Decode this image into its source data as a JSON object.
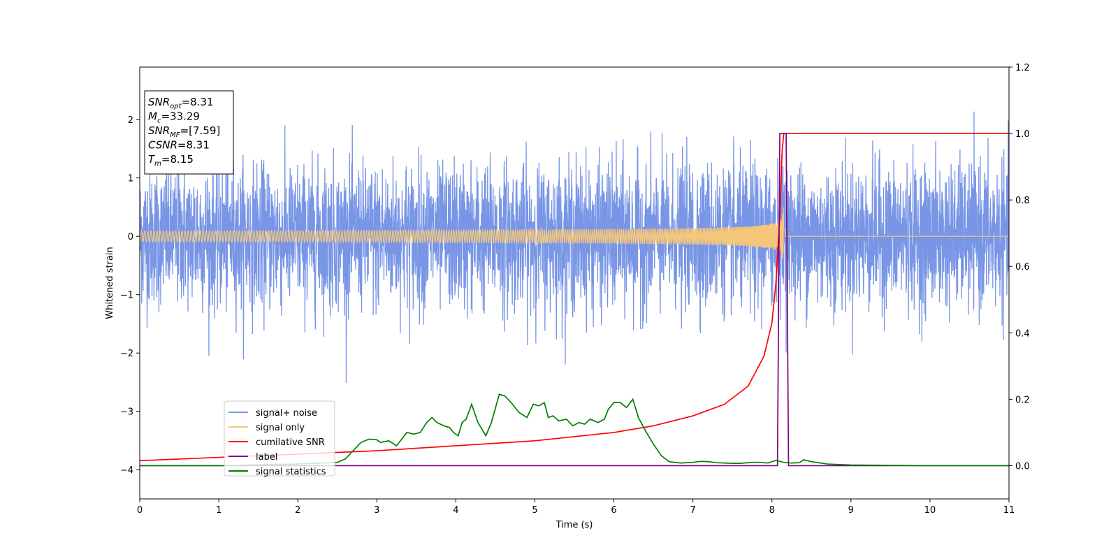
{
  "chart_data": {
    "type": "line",
    "xlabel": "Time (s)",
    "ylabel": "Whitened strain",
    "xlim": [
      0,
      11
    ],
    "ylim": [
      -4.5,
      2.9
    ],
    "y2lim": [
      -0.1,
      1.2
    ],
    "x_ticks": [
      0,
      1,
      2,
      3,
      4,
      5,
      6,
      7,
      8,
      9,
      10,
      11
    ],
    "y_ticks": [
      -4,
      -3,
      -2,
      -1,
      0,
      1,
      2
    ],
    "y2_ticks": [
      0.0,
      0.2,
      0.4,
      0.6,
      0.8,
      1.0,
      1.2
    ],
    "grid": false,
    "legend_position": "lower-left",
    "annotation": {
      "lines": [
        {
          "var": "SNR",
          "sub": "opt",
          "value": "=8.31"
        },
        {
          "var": "M",
          "sub": "c",
          "value": "=33.29"
        },
        {
          "var": "SNR",
          "sub": "MF",
          "value": "=[7.59]"
        },
        {
          "var": "CSNR",
          "sub": "",
          "value": "=8.31"
        },
        {
          "var": "T",
          "sub": "m",
          "value": "=8.15"
        }
      ]
    },
    "series": [
      {
        "name": "signal+ noise",
        "color": "#7895e6",
        "axis": "left",
        "description_values": {
          "noise_std": 0.5,
          "duration": 11
        }
      },
      {
        "name": "signal only",
        "color": "#f5c77a",
        "axis": "left",
        "chirp": {
          "merger_time": 8.15,
          "peak_amplitude": 0.55
        }
      },
      {
        "name": "cumilative SNR",
        "color": "#ff0000",
        "axis": "right",
        "x": [
          0,
          1,
          2,
          3,
          4,
          5,
          6,
          6.5,
          7,
          7.4,
          7.7,
          7.9,
          8.0,
          8.05,
          8.1,
          8.13,
          8.15,
          8.2,
          9,
          10,
          11
        ],
        "y": [
          0.015,
          0.025,
          0.035,
          0.045,
          0.06,
          0.075,
          0.1,
          0.12,
          0.15,
          0.185,
          0.24,
          0.33,
          0.43,
          0.55,
          0.75,
          0.95,
          1.0,
          1.0,
          1.0,
          1.0,
          1.0
        ]
      },
      {
        "name": "label",
        "color": "#800080",
        "axis": "right",
        "x": [
          0,
          8.07,
          8.1,
          8.18,
          8.21,
          11
        ],
        "y": [
          0,
          0,
          1.0,
          1.0,
          0,
          0
        ]
      },
      {
        "name": "signal statistics",
        "color": "#008000",
        "axis": "right",
        "x": [
          0,
          1,
          2,
          2.5,
          2.6,
          2.7,
          2.8,
          2.9,
          3.0,
          3.05,
          3.15,
          3.25,
          3.38,
          3.47,
          3.55,
          3.63,
          3.7,
          3.76,
          3.85,
          3.92,
          3.97,
          4.03,
          4.08,
          4.13,
          4.2,
          4.28,
          4.38,
          4.45,
          4.55,
          4.62,
          4.7,
          4.8,
          4.9,
          4.98,
          5.05,
          5.12,
          5.17,
          5.23,
          5.3,
          5.4,
          5.48,
          5.56,
          5.63,
          5.7,
          5.8,
          5.88,
          5.93,
          6.0,
          6.08,
          6.16,
          6.24,
          6.31,
          6.4,
          6.5,
          6.6,
          6.7,
          6.85,
          7.0,
          7.1,
          7.2,
          7.3,
          7.5,
          7.6,
          7.75,
          7.85,
          7.95,
          8.05,
          8.15,
          8.25,
          8.35,
          8.4,
          8.5,
          8.7,
          9.0,
          9.5,
          10,
          11
        ],
        "y": [
          0.0,
          0.0,
          0.005,
          0.01,
          0.02,
          0.045,
          0.07,
          0.08,
          0.078,
          0.07,
          0.075,
          0.06,
          0.1,
          0.095,
          0.1,
          0.13,
          0.145,
          0.13,
          0.12,
          0.115,
          0.1,
          0.09,
          0.13,
          0.14,
          0.185,
          0.13,
          0.09,
          0.13,
          0.215,
          0.21,
          0.19,
          0.16,
          0.145,
          0.185,
          0.18,
          0.19,
          0.145,
          0.15,
          0.135,
          0.14,
          0.12,
          0.13,
          0.125,
          0.14,
          0.13,
          0.14,
          0.17,
          0.19,
          0.19,
          0.175,
          0.2,
          0.145,
          0.105,
          0.065,
          0.03,
          0.012,
          0.008,
          0.01,
          0.013,
          0.012,
          0.009,
          0.007,
          0.007,
          0.01,
          0.01,
          0.008,
          0.016,
          0.01,
          0.008,
          0.009,
          0.018,
          0.012,
          0.005,
          0.002,
          0.001,
          0.0,
          0.0
        ]
      }
    ]
  }
}
